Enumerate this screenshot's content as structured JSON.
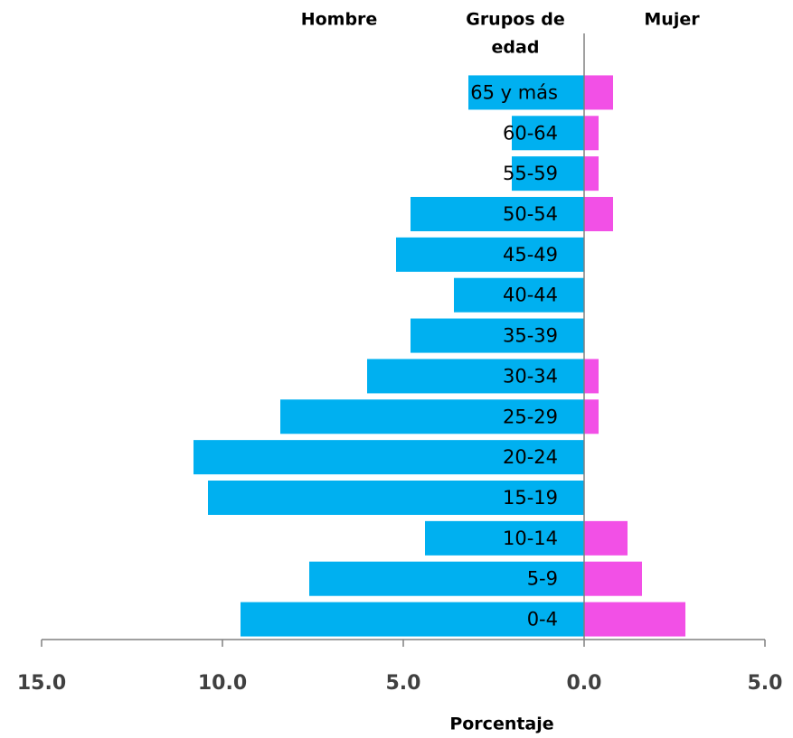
{
  "chart_data": {
    "type": "pyramid",
    "header_left": "Hombre",
    "header_center": [
      "Grupos de",
      "edad"
    ],
    "header_right": "Mujer",
    "x_label": "Porcentaje",
    "categories": [
      "65 y más",
      "60-64",
      "55-59",
      "50-54",
      "45-49",
      "40-44",
      "35-39",
      "30-34",
      "25-29",
      "20-24",
      "15-19",
      "10-14",
      "5-9",
      "0-4"
    ],
    "series": [
      {
        "name": "Hombre",
        "color": "#00b0f0",
        "values": [
          -3.2,
          -2.0,
          -2.0,
          -4.8,
          -5.2,
          -3.6,
          -4.8,
          -6.0,
          -8.4,
          -10.8,
          -10.4,
          -4.4,
          -7.6,
          -9.5
        ]
      },
      {
        "name": "Mujer",
        "color": "#f250e6",
        "values": [
          0.8,
          0.4,
          0.4,
          0.8,
          0,
          0,
          0,
          0.4,
          0.4,
          0,
          0,
          1.2,
          1.6,
          2.8
        ]
      }
    ],
    "xlim": [
      -15,
      5
    ],
    "xticks": [
      {
        "value": -15,
        "label": "15.0"
      },
      {
        "value": -10,
        "label": "10.0"
      },
      {
        "value": -5,
        "label": "5.0"
      },
      {
        "value": 0,
        "label": "0.0"
      },
      {
        "value": 5,
        "label": "5.0"
      }
    ]
  }
}
